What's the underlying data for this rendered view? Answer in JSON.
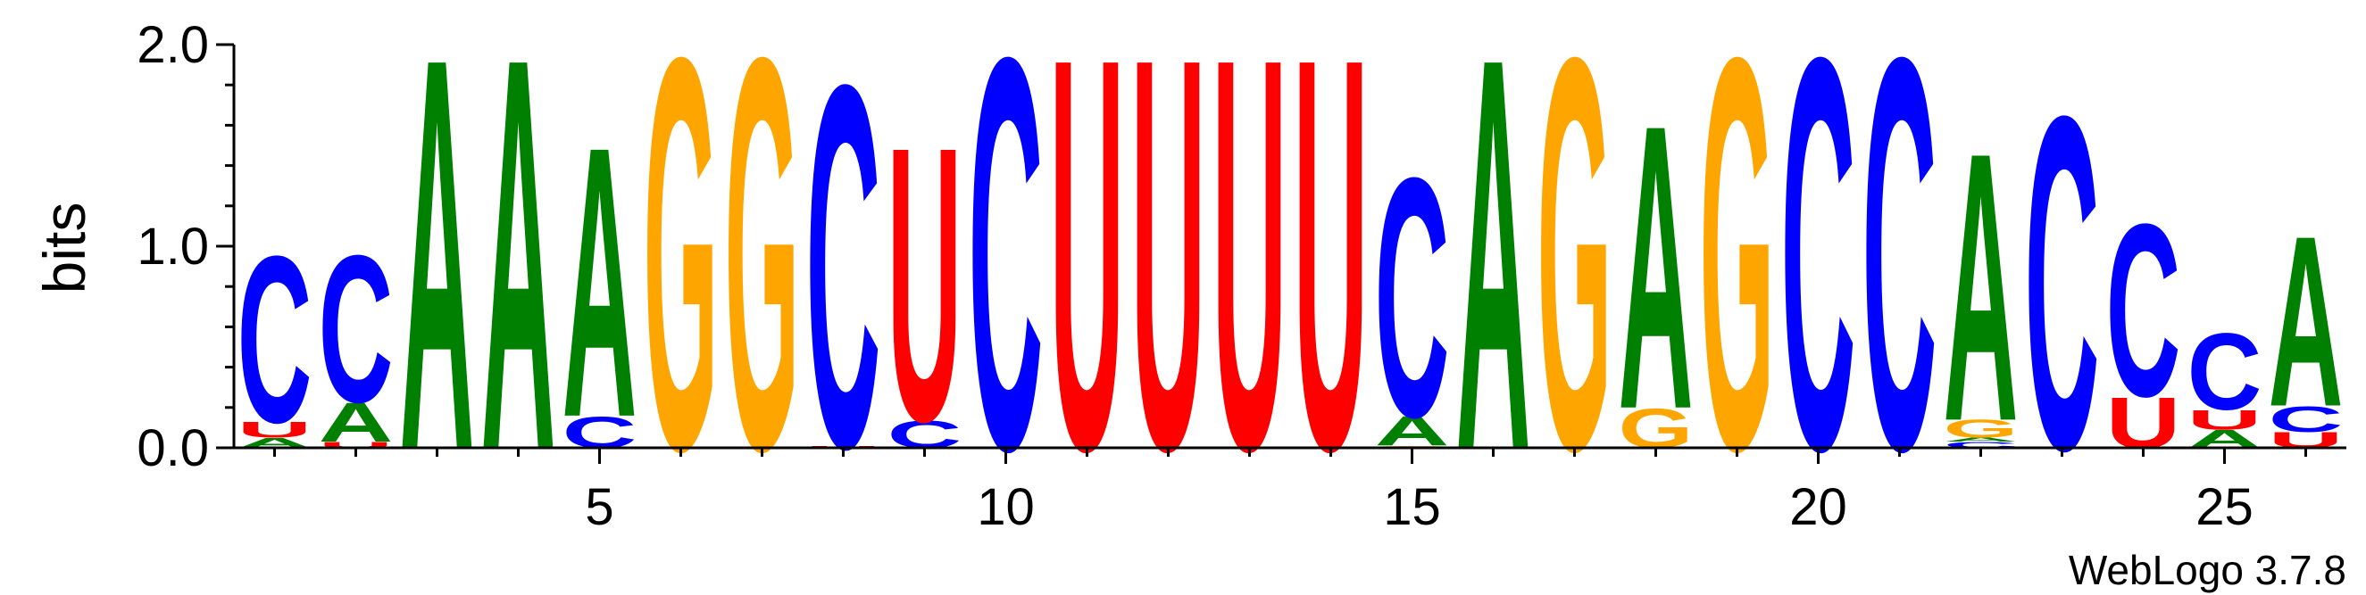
{
  "chart_data": {
    "type": "sequence-logo",
    "ylabel": "bits",
    "ylim": [
      0,
      2
    ],
    "xlim": [
      0.5,
      26.5
    ],
    "y_ticks": [
      "0.0",
      "1.0",
      "2.0"
    ],
    "x_ticks": [
      "5",
      "10",
      "15",
      "20",
      "25"
    ],
    "x_tick_values": [
      5,
      10,
      15,
      20,
      25
    ],
    "y_tick_values": [
      0,
      1,
      2
    ],
    "footer": "WebLogo 3.7.8",
    "colors": {
      "A": "#008000",
      "C": "#0000ff",
      "G": "#ffa500",
      "U": "#ff0000"
    },
    "positions": [
      {
        "pos": 1,
        "letters": [
          {
            "l": "A",
            "h": 0.05
          },
          {
            "l": "U",
            "h": 0.08
          },
          {
            "l": "C",
            "h": 0.85
          }
        ]
      },
      {
        "pos": 2,
        "letters": [
          {
            "l": "U",
            "h": 0.03
          },
          {
            "l": "A",
            "h": 0.2
          },
          {
            "l": "C",
            "h": 0.75
          }
        ]
      },
      {
        "pos": 3,
        "letters": [
          {
            "l": "A",
            "h": 2.0
          }
        ]
      },
      {
        "pos": 4,
        "letters": [
          {
            "l": "A",
            "h": 2.0
          }
        ]
      },
      {
        "pos": 5,
        "letters": [
          {
            "l": "C",
            "h": 0.16
          },
          {
            "l": "A",
            "h": 1.38
          }
        ]
      },
      {
        "pos": 6,
        "letters": [
          {
            "l": "G",
            "h": 2.0
          }
        ]
      },
      {
        "pos": 7,
        "letters": [
          {
            "l": "G",
            "h": 2.0
          }
        ]
      },
      {
        "pos": 8,
        "letters": [
          {
            "l": "U",
            "h": 0.01
          },
          {
            "l": "C",
            "h": 1.85
          }
        ]
      },
      {
        "pos": 9,
        "letters": [
          {
            "l": "C",
            "h": 0.14
          },
          {
            "l": "U",
            "h": 1.4
          }
        ]
      },
      {
        "pos": 10,
        "letters": [
          {
            "l": "C",
            "h": 2.0
          }
        ]
      },
      {
        "pos": 11,
        "letters": [
          {
            "l": "U",
            "h": 2.0
          }
        ]
      },
      {
        "pos": 12,
        "letters": [
          {
            "l": "U",
            "h": 2.0
          }
        ]
      },
      {
        "pos": 13,
        "letters": [
          {
            "l": "U",
            "h": 2.0
          }
        ]
      },
      {
        "pos": 14,
        "letters": [
          {
            "l": "U",
            "h": 2.0
          }
        ]
      },
      {
        "pos": 15,
        "letters": [
          {
            "l": "G",
            "h": 0.01
          },
          {
            "l": "A",
            "h": 0.15
          },
          {
            "l": "C",
            "h": 1.22
          }
        ]
      },
      {
        "pos": 16,
        "letters": [
          {
            "l": "A",
            "h": 2.0
          }
        ]
      },
      {
        "pos": 17,
        "letters": [
          {
            "l": "G",
            "h": 2.0
          }
        ]
      },
      {
        "pos": 18,
        "letters": [
          {
            "l": "G",
            "h": 0.2
          },
          {
            "l": "A",
            "h": 1.45
          }
        ]
      },
      {
        "pos": 19,
        "letters": [
          {
            "l": "G",
            "h": 2.0
          }
        ]
      },
      {
        "pos": 20,
        "letters": [
          {
            "l": "C",
            "h": 2.0
          }
        ]
      },
      {
        "pos": 21,
        "letters": [
          {
            "l": "C",
            "h": 2.0
          }
        ]
      },
      {
        "pos": 22,
        "letters": [
          {
            "l": "C",
            "h": 0.03
          },
          {
            "l": "A",
            "h": 0.02
          },
          {
            "l": "G",
            "h": 0.09
          },
          {
            "l": "A",
            "h": 1.37
          }
        ]
      },
      {
        "pos": 23,
        "letters": [
          {
            "l": "C",
            "h": 1.7
          }
        ]
      },
      {
        "pos": 24,
        "letters": [
          {
            "l": "U",
            "h": 0.26
          },
          {
            "l": "C",
            "h": 0.88
          }
        ]
      },
      {
        "pos": 25,
        "letters": [
          {
            "l": "A",
            "h": 0.09
          },
          {
            "l": "U",
            "h": 0.1
          },
          {
            "l": "C",
            "h": 0.39
          }
        ]
      },
      {
        "pos": 26,
        "letters": [
          {
            "l": "U",
            "h": 0.08
          },
          {
            "l": "C",
            "h": 0.13
          },
          {
            "l": "A",
            "h": 0.87
          }
        ]
      }
    ]
  }
}
